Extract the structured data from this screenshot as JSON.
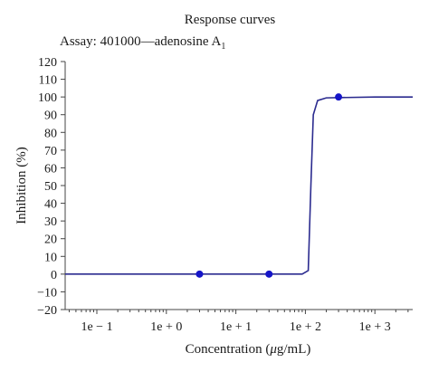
{
  "chart_data": {
    "type": "line",
    "title": "Response curves",
    "subtitle_main": "Assay: 401000—adenosine A",
    "subtitle_sub": "1",
    "xlabel_prefix": "Concentration (",
    "xlabel_greek": "μ",
    "xlabel_suffix": "g/mL)",
    "ylabel": "Inhibition (%)",
    "x_scale": "log10",
    "xlim": [
      0.035,
      3500
    ],
    "ylim": [
      -20,
      120
    ],
    "y_ticks": [
      -20,
      -10,
      0,
      10,
      20,
      30,
      40,
      50,
      60,
      70,
      80,
      90,
      100,
      110,
      120
    ],
    "x_ticks": [
      {
        "value": 0.1,
        "label": "1e − 1"
      },
      {
        "value": 1,
        "label": "1e + 0"
      },
      {
        "value": 10,
        "label": "1e + 1"
      },
      {
        "value": 100,
        "label": "1e + 2"
      },
      {
        "value": 1000,
        "label": "1e + 3"
      }
    ],
    "curve": {
      "x": [
        0.035,
        1,
        10,
        90,
        110,
        120,
        130,
        150,
        200,
        1000,
        3500
      ],
      "y": [
        0,
        0,
        0,
        0,
        2,
        50,
        90,
        98,
        99.5,
        100,
        100
      ],
      "color": "#2b2b8f"
    },
    "points": {
      "x": [
        3,
        30,
        300
      ],
      "y": [
        0,
        0,
        100
      ],
      "color": "#1515c8"
    }
  }
}
